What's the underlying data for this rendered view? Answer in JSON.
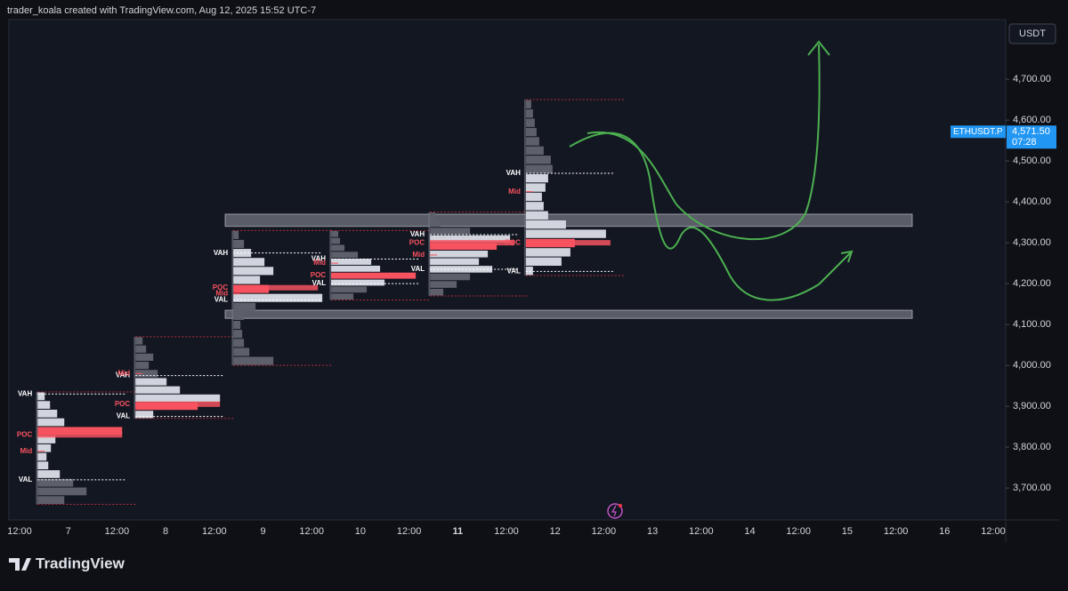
{
  "chart_data": {
    "type": "volume_profile",
    "attribution": "trader_koala created with TradingView.com, Aug 12, 2025 15:52 UTC-7",
    "currency": "USDT",
    "symbol": "ETHUSDT.P",
    "last_price": {
      "value": 4571.5,
      "label": "4,571.50"
    },
    "countdown": "07:28",
    "brand": "TradingView",
    "ylim": [
      3622,
      4846
    ],
    "yticks": [
      {
        "value": 3700,
        "label": "3,700.00"
      },
      {
        "value": 3800,
        "label": "3,800.00"
      },
      {
        "value": 3900,
        "label": "3,900.00"
      },
      {
        "value": 4000,
        "label": "4,000.00"
      },
      {
        "value": 4100,
        "label": "4,100.00"
      },
      {
        "value": 4200,
        "label": "4,200.00"
      },
      {
        "value": 4300,
        "label": "4,300.00"
      },
      {
        "value": 4400,
        "label": "4,400.00"
      },
      {
        "value": 4500,
        "label": "4,500.00"
      },
      {
        "value": 4600,
        "label": "4,600.00"
      },
      {
        "value": 4700,
        "label": "4,700.00"
      }
    ],
    "xlim": [
      0,
      20
    ],
    "categories": [
      "12:00",
      "7",
      "12:00",
      "8",
      "12:00",
      "9",
      "12:00",
      "10",
      "12:00",
      "11",
      "12:00",
      "12",
      "12:00",
      "13",
      "12:00",
      "14",
      "12:00",
      "15",
      "12:00",
      "16",
      "12:00"
    ],
    "level_labels": {
      "vah": "VAH",
      "poc": "POC",
      "mid": "Mid",
      "val": "VAL"
    },
    "zones": [
      [
        4340,
        4370
      ],
      [
        4115,
        4135
      ]
    ],
    "profiles": [
      {
        "start": 0.37,
        "low": 3660,
        "high": 3935,
        "vah": 3930,
        "poc": 3830,
        "mid": 3790,
        "val": 3720,
        "rows": [
          30,
          55,
          40,
          25,
          12,
          10,
          15,
          20,
          95,
          30,
          22,
          14,
          8
        ]
      },
      {
        "start": 2.38,
        "low": 3870,
        "high": 4070,
        "vah": 3975,
        "poc": 3905,
        "mid": 3980,
        "val": 3875,
        "rows": [
          20,
          70,
          95,
          50,
          35,
          25,
          15,
          20,
          12,
          8
        ]
      },
      {
        "start": 4.39,
        "low": 4000,
        "high": 4330,
        "vah": 4275,
        "poc": 4190,
        "mid": 4175,
        "val": 4160,
        "rows": [
          45,
          18,
          12,
          10,
          8,
          12,
          25,
          100,
          40,
          30,
          45,
          35,
          20,
          12,
          6
        ]
      },
      {
        "start": 6.4,
        "low": 4160,
        "high": 4330,
        "vah": 4260,
        "poc": 4220,
        "mid": 4250,
        "val": 4200,
        "rows": [
          25,
          40,
          60,
          95,
          55,
          45,
          30,
          15,
          10,
          8
        ]
      },
      {
        "start": 8.43,
        "low": 4170,
        "high": 4375,
        "vah": 4320,
        "poc": 4300,
        "mid": 4270,
        "val": 4235,
        "rows": [
          15,
          30,
          45,
          70,
          55,
          65,
          75,
          90,
          45,
          12,
          6
        ]
      },
      {
        "start": 10.4,
        "low": 4220,
        "high": 4650,
        "vah": 4470,
        "poc": 4300,
        "mid": 4425,
        "val": 4230,
        "rows": [
          8,
          40,
          50,
          55,
          90,
          45,
          25,
          20,
          18,
          22,
          25,
          30,
          28,
          20,
          15,
          12,
          10,
          8,
          6
        ]
      }
    ]
  }
}
